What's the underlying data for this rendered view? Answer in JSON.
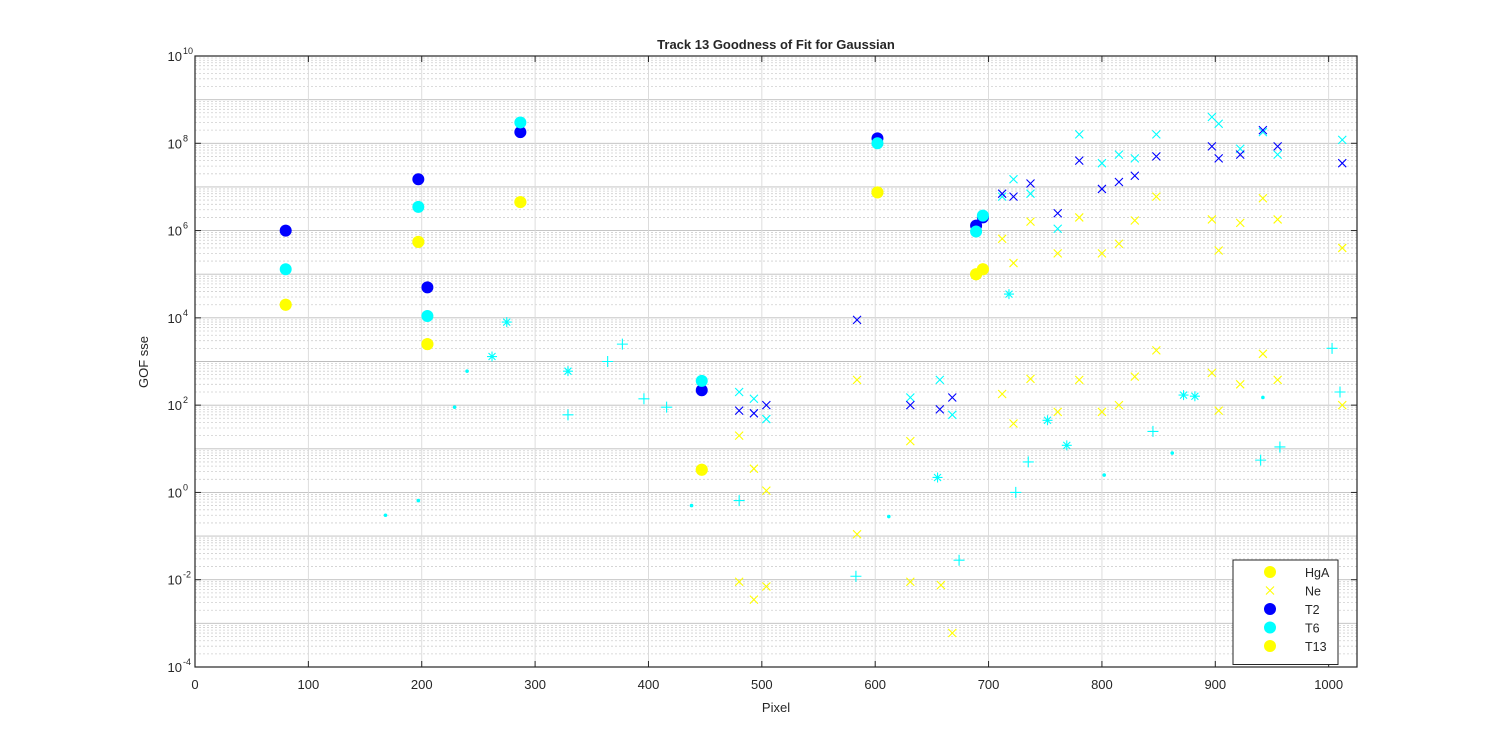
{
  "chart_data": {
    "type": "scatter",
    "title": "Track 13  Goodness of Fit for Gaussian",
    "xlabel": "Pixel",
    "ylabel": "GOF sse",
    "xlim": [
      0,
      1025
    ],
    "ylim_exponent": [
      -4,
      10
    ],
    "y_scale": "log",
    "grid": "on",
    "legend_position": "bottom-right",
    "x_ticks": [
      "0",
      "100",
      "200",
      "300",
      "400",
      "500",
      "600",
      "700",
      "800",
      "900",
      "1000"
    ],
    "y_ticks": [
      {
        "base": "10",
        "exp": "-4"
      },
      {
        "base": "10",
        "exp": "-2"
      },
      {
        "base": "10",
        "exp": "0"
      },
      {
        "base": "10",
        "exp": "2"
      },
      {
        "base": "10",
        "exp": "4"
      },
      {
        "base": "10",
        "exp": "6"
      },
      {
        "base": "10",
        "exp": "8"
      },
      {
        "base": "10",
        "exp": "10"
      }
    ],
    "series": [
      {
        "name": "HgA",
        "marker": "dot",
        "color": "#ffff00",
        "points": [
          [
            80,
            20000.0
          ],
          [
            197,
            550000.0
          ],
          [
            205,
            2500.0
          ],
          [
            287,
            4500000.0
          ],
          [
            447,
            3.3
          ],
          [
            602,
            7500000.0
          ],
          [
            689,
            100000.0
          ],
          [
            695,
            130000.0
          ]
        ]
      },
      {
        "name": "Ne",
        "marker": "x",
        "color": "#ffff00",
        "points": [
          [
            480,
            20.0
          ],
          [
            493,
            3.5
          ],
          [
            504,
            1.1
          ],
          [
            480,
            0.009
          ],
          [
            493,
            0.0035
          ],
          [
            504,
            0.007
          ],
          [
            584,
            380.0
          ],
          [
            584,
            0.11
          ],
          [
            631,
            15.0
          ],
          [
            631,
            0.009
          ],
          [
            658,
            0.0075
          ],
          [
            668,
            0.0006
          ],
          [
            712,
            650000.0
          ],
          [
            712,
            180.0
          ],
          [
            722,
            180000.0
          ],
          [
            722,
            38.0
          ],
          [
            737,
            1600000.0
          ],
          [
            737,
            400.0
          ],
          [
            761,
            300000.0
          ],
          [
            761,
            70.0
          ],
          [
            780,
            2000000.0
          ],
          [
            780,
            380.0
          ],
          [
            800,
            300000.0
          ],
          [
            800,
            70.0
          ],
          [
            815,
            500000.0
          ],
          [
            815,
            100.0
          ],
          [
            829,
            1700000.0
          ],
          [
            829,
            450.0
          ],
          [
            848,
            6000000.0
          ],
          [
            848,
            1800.0
          ],
          [
            897,
            1800000.0
          ],
          [
            897,
            550.0
          ],
          [
            903,
            350000.0
          ],
          [
            903,
            75.0
          ],
          [
            922,
            1500000.0
          ],
          [
            922,
            300.0
          ],
          [
            942,
            5500000.0
          ],
          [
            942,
            1500.0
          ],
          [
            955,
            1800000.0
          ],
          [
            955,
            380.0
          ],
          [
            1012,
            400000.0
          ],
          [
            1012,
            100.0
          ]
        ]
      },
      {
        "name": "T2",
        "marker": "dot",
        "color": "#0000ff",
        "points": [
          [
            80,
            1000000.0
          ],
          [
            197,
            15000000.0
          ],
          [
            205,
            50000.0
          ],
          [
            287,
            180000000.0
          ],
          [
            447,
            220.0
          ],
          [
            602,
            130000000.0
          ],
          [
            689,
            1300000.0
          ],
          [
            695,
            2000000.0
          ]
        ]
      },
      {
        "name": "T6",
        "marker": "dot",
        "color": "#00ffff",
        "points": [
          [
            80,
            130000.0
          ],
          [
            197,
            3500000.0
          ],
          [
            205,
            11000.0
          ],
          [
            287,
            300000000.0
          ],
          [
            447,
            360.0
          ],
          [
            602,
            100000000.0
          ],
          [
            689,
            950000.0
          ],
          [
            695,
            2200000.0
          ]
        ]
      },
      {
        "name": "T13",
        "marker": "dot",
        "color": "#ffff00",
        "points": [
          [
            80,
            20000.0
          ],
          [
            197,
            550000.0
          ],
          [
            205,
            2500.0
          ],
          [
            287,
            4500000.0
          ],
          [
            447,
            3.3
          ],
          [
            602,
            7500000.0
          ],
          [
            689,
            100000.0
          ],
          [
            695,
            130000.0
          ]
        ]
      },
      {
        "marker": "x",
        "color": "#0000ff",
        "points": [
          [
            480,
            75.0
          ],
          [
            493,
            65.0
          ],
          [
            504,
            100.0
          ],
          [
            584,
            9000.0
          ],
          [
            631,
            100.0
          ],
          [
            657,
            80.0
          ],
          [
            668,
            150.0
          ],
          [
            712,
            7000000.0
          ],
          [
            722,
            6000000.0
          ],
          [
            737,
            12000000.0
          ],
          [
            761,
            2500000.0
          ],
          [
            780,
            40000000.0
          ],
          [
            800,
            9000000.0
          ],
          [
            815,
            13000000.0
          ],
          [
            829,
            18000000.0
          ],
          [
            848,
            50000000.0
          ],
          [
            897,
            85000000.0
          ],
          [
            903,
            45000000.0
          ],
          [
            922,
            55000000.0
          ],
          [
            942,
            200000000.0
          ],
          [
            955,
            85000000.0
          ],
          [
            1012,
            35000000.0
          ]
        ]
      },
      {
        "marker": "x",
        "color": "#00ffff",
        "points": [
          [
            480,
            200.0
          ],
          [
            493,
            140.0
          ],
          [
            504,
            48.0
          ],
          [
            631,
            150.0
          ],
          [
            657,
            380.0
          ],
          [
            668,
            60.0
          ],
          [
            712,
            6000000.0
          ],
          [
            722,
            15000000.0
          ],
          [
            737,
            7000000.0
          ],
          [
            761,
            1100000.0
          ],
          [
            780,
            160000000.0
          ],
          [
            800,
            35000000.0
          ],
          [
            815,
            55000000.0
          ],
          [
            829,
            45000000.0
          ],
          [
            848,
            160000000.0
          ],
          [
            897,
            400000000.0
          ],
          [
            903,
            280000000.0
          ],
          [
            922,
            75000000.0
          ],
          [
            942,
            180000000.0
          ],
          [
            955,
            55000000.0
          ],
          [
            1012,
            120000000.0
          ]
        ]
      },
      {
        "marker": "star",
        "color": "#00ffff",
        "points": [
          [
            262,
            1300.0
          ],
          [
            275,
            8000.0
          ],
          [
            329,
            600.0
          ],
          [
            655,
            2.2
          ],
          [
            718,
            35000.0
          ],
          [
            752,
            45.0
          ],
          [
            769,
            12.0
          ],
          [
            872,
            170.0
          ],
          [
            882,
            160.0
          ]
        ]
      },
      {
        "marker": "plus",
        "color": "#00ffff",
        "points": [
          [
            329,
            60.0
          ],
          [
            364,
            1000.0
          ],
          [
            377,
            2500.0
          ],
          [
            396,
            140.0
          ],
          [
            416,
            90.0
          ],
          [
            480,
            0.65
          ],
          [
            583,
            0.012
          ],
          [
            674,
            0.028
          ],
          [
            724,
            1.0
          ],
          [
            735,
            5.0
          ],
          [
            845,
            25.0
          ],
          [
            940,
            5.5
          ],
          [
            957,
            11.0
          ],
          [
            1003,
            2000.0
          ],
          [
            1010,
            200.0
          ]
        ]
      },
      {
        "marker": "point",
        "color": "#00ffff",
        "points": [
          [
            168,
            0.3
          ],
          [
            197,
            0.65
          ],
          [
            229,
            90.0
          ],
          [
            240,
            600.0
          ],
          [
            438,
            0.5
          ],
          [
            612,
            0.28
          ],
          [
            802,
            2.5
          ],
          [
            862,
            8.0
          ],
          [
            942,
            150.0
          ]
        ]
      }
    ]
  }
}
